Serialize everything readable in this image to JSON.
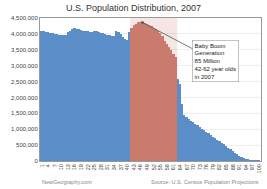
{
  "chart_data": {
    "type": "bar",
    "title": "U.S. Population Distribution, 2007",
    "x": [
      1,
      2,
      3,
      4,
      5,
      6,
      7,
      8,
      9,
      10,
      11,
      12,
      13,
      14,
      15,
      16,
      17,
      18,
      19,
      20,
      21,
      22,
      23,
      24,
      25,
      26,
      27,
      28,
      29,
      30,
      31,
      32,
      33,
      34,
      35,
      36,
      37,
      38,
      39,
      40,
      41,
      42,
      43,
      44,
      45,
      46,
      47,
      48,
      49,
      50,
      51,
      52,
      53,
      54,
      55,
      56,
      57,
      58,
      59,
      60,
      61,
      62,
      63,
      64,
      65,
      66,
      67,
      68,
      69,
      70,
      71,
      72,
      73,
      74,
      75,
      76,
      77,
      78,
      79,
      80,
      81,
      82,
      83,
      84,
      85,
      86,
      87,
      88,
      89,
      90,
      91,
      92,
      93,
      94,
      95,
      96,
      97,
      98,
      99,
      100
    ],
    "values": [
      4100000,
      4080000,
      4060000,
      4050000,
      4030000,
      4020000,
      4010000,
      3990000,
      3980000,
      3970000,
      3960000,
      3950000,
      4050000,
      4100000,
      4150000,
      4180000,
      4160000,
      4140000,
      4120000,
      4100000,
      4090000,
      4080000,
      4070000,
      4060000,
      4100000,
      4090000,
      4060000,
      4040000,
      4020000,
      4000000,
      3980000,
      3960000,
      3940000,
      3920000,
      4100000,
      4050000,
      4000000,
      3900000,
      3850000,
      3820000,
      4050000,
      4200000,
      4280000,
      4320000,
      4360000,
      4390000,
      4370000,
      4340000,
      4310000,
      4280000,
      4240000,
      4190000,
      4140000,
      4090000,
      4040000,
      3940000,
      3780000,
      3680000,
      3580000,
      3480000,
      3380000,
      3260000,
      2580000,
      2420000,
      1780000,
      1460000,
      1380000,
      1320000,
      1270000,
      1220000,
      1170000,
      1120000,
      1070000,
      1020000,
      970000,
      920000,
      870000,
      820000,
      770000,
      720000,
      670000,
      620000,
      570000,
      520000,
      470000,
      420000,
      370000,
      320000,
      265000,
      210000,
      160000,
      120000,
      85000,
      58000,
      38000,
      28000,
      18000,
      12000,
      8000,
      4000
    ],
    "colors": [
      "#5b8dc8",
      "#5b8dc8",
      "#5b8dc8",
      "#5b8dc8",
      "#5b8dc8",
      "#5b8dc8",
      "#5b8dc8",
      "#5b8dc8",
      "#5b8dc8",
      "#5b8dc8",
      "#5b8dc8",
      "#5b8dc8",
      "#5b8dc8",
      "#5b8dc8",
      "#5b8dc8",
      "#5b8dc8",
      "#5b8dc8",
      "#5b8dc8",
      "#5b8dc8",
      "#5b8dc8",
      "#5b8dc8",
      "#5b8dc8",
      "#5b8dc8",
      "#5b8dc8",
      "#5b8dc8",
      "#5b8dc8",
      "#5b8dc8",
      "#5b8dc8",
      "#5b8dc8",
      "#5b8dc8",
      "#5b8dc8",
      "#5b8dc8",
      "#5b8dc8",
      "#5b8dc8",
      "#5b8dc8",
      "#5b8dc8",
      "#5b8dc8",
      "#5b8dc8",
      "#5b8dc8",
      "#5b8dc8",
      "#5b8dc8",
      "#c97b6e",
      "#c97b6e",
      "#c97b6e",
      "#c97b6e",
      "#c97b6e",
      "#c97b6e",
      "#c97b6e",
      "#c97b6e",
      "#c97b6e",
      "#c97b6e",
      "#c97b6e",
      "#c97b6e",
      "#c97b6e",
      "#c97b6e",
      "#c97b6e",
      "#c97b6e",
      "#c97b6e",
      "#c97b6e",
      "#c97b6e",
      "#c97b6e",
      "#c97b6e",
      "#5b8dc8",
      "#5b8dc8",
      "#5b8dc8",
      "#5b8dc8",
      "#5b8dc8",
      "#5b8dc8",
      "#5b8dc8",
      "#5b8dc8",
      "#5b8dc8",
      "#5b8dc8",
      "#5b8dc8",
      "#5b8dc8",
      "#5b8dc8",
      "#5b8dc8",
      "#5b8dc8",
      "#5b8dc8",
      "#5b8dc8",
      "#5b8dc8",
      "#5b8dc8",
      "#5b8dc8",
      "#5b8dc8",
      "#5b8dc8",
      "#5b8dc8",
      "#5b8dc8",
      "#5b8dc8",
      "#5b8dc8",
      "#5b8dc8",
      "#5b8dc8",
      "#5b8dc8",
      "#5b8dc8",
      "#5b8dc8",
      "#5b8dc8",
      "#5b8dc8",
      "#5b8dc8",
      "#5b8dc8",
      "#5b8dc8",
      "#5b8dc8",
      "#5b8dc8"
    ],
    "xlim": [
      0.2,
      100.8
    ],
    "xticks": [
      1,
      4,
      7,
      10,
      13,
      16,
      19,
      22,
      25,
      28,
      31,
      34,
      37,
      40,
      43,
      46,
      49,
      52,
      55,
      58,
      61,
      64,
      67,
      70,
      73,
      76,
      79,
      82,
      85,
      88,
      91,
      94,
      97,
      100
    ],
    "ylim": [
      0,
      4500000
    ],
    "yticks": [
      0,
      {
        "value": 500000,
        "label": "500,000"
      },
      {
        "value": 1000000,
        "label": "1,000,000"
      },
      {
        "value": 1500000,
        "label": "1,500,000"
      },
      {
        "value": 2000000,
        "label": "2,000,000"
      },
      {
        "value": 2500000,
        "label": "2,500,000"
      },
      {
        "value": 3000000,
        "label": "3,000,000"
      },
      {
        "value": 3500000,
        "label": "3,500,000"
      },
      {
        "value": 4000000,
        "label": "4,000,000"
      },
      {
        "value": 4500000,
        "label": "4,500,000"
      }
    ],
    "grid": true,
    "annotations": [
      "Baby Boom\nGeneration\n85 Million\n42-62 year olds\nin 2007",
      "NewGeography.com",
      "Source: U.S. Census Population Projections"
    ]
  }
}
